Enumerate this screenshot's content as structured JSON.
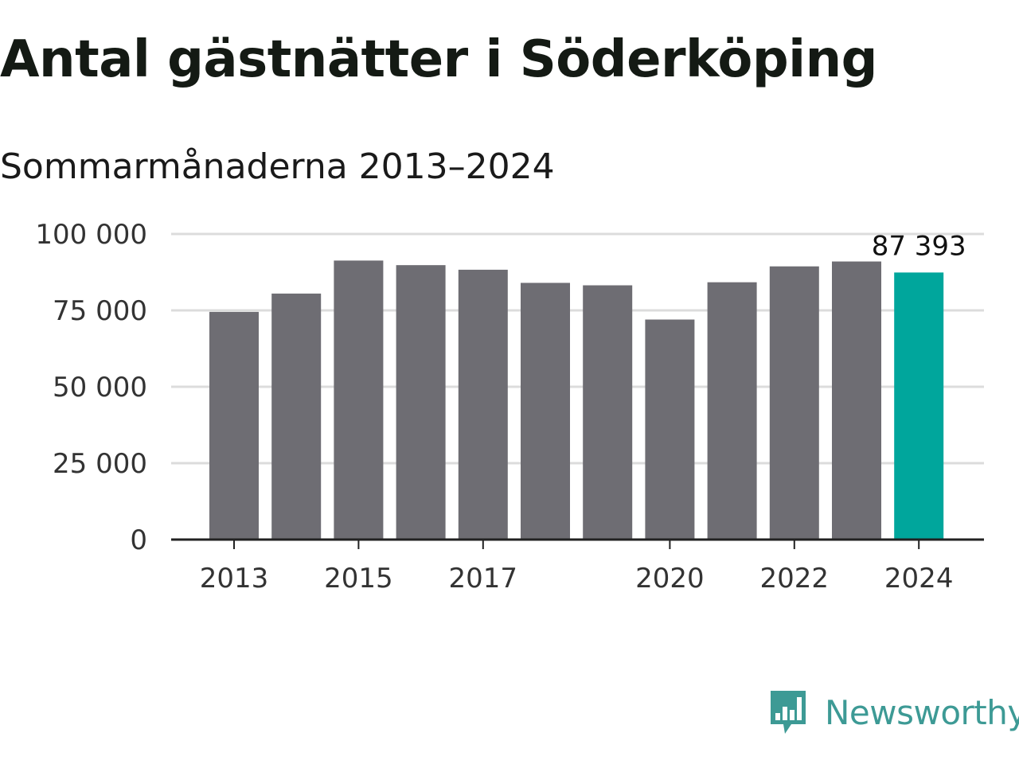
{
  "header": {
    "title": "Antal gästnätter i Söderköping",
    "subtitle": "Sommarmånaderna 2013–2024"
  },
  "brand": {
    "name": "Newsworthy",
    "color": "#3d9a95"
  },
  "colors": {
    "bar": "#6e6d73",
    "highlight": "#00a69c",
    "grid": "#dcdcdc",
    "axis": "#222222"
  },
  "chart_data": {
    "type": "bar",
    "title": "Antal gästnätter i Söderköping",
    "subtitle": "Sommarmånaderna 2013–2024",
    "xlabel": "",
    "ylabel": "",
    "categories": [
      "2013",
      "2014",
      "2015",
      "2016",
      "2017",
      "2018",
      "2019",
      "2020",
      "2021",
      "2022",
      "2023",
      "2024"
    ],
    "values": [
      74500,
      80500,
      91300,
      89800,
      88300,
      84000,
      83200,
      72000,
      84200,
      89400,
      91000,
      87393
    ],
    "highlight_index": 11,
    "value_labels": [
      {
        "index": 11,
        "text": "87 393"
      }
    ],
    "ylim": [
      0,
      100000
    ],
    "yticks": [
      0,
      25000,
      50000,
      75000,
      100000
    ],
    "ytick_labels": [
      "0",
      "25 000",
      "50 000",
      "75 000",
      "100 000"
    ],
    "xtick_labels": [
      "2013",
      "2015",
      "2017",
      "2020",
      "2022",
      "2024"
    ],
    "grid": true,
    "legend": "none"
  }
}
